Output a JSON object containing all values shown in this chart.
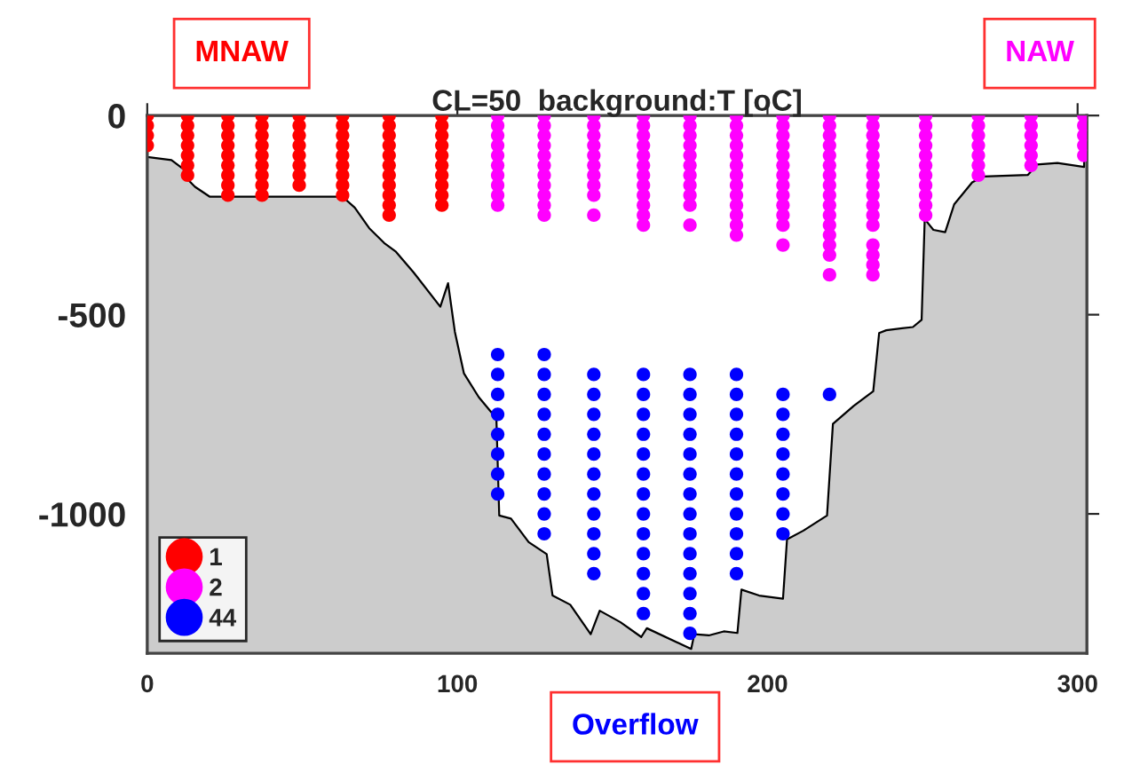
{
  "chart_data": {
    "type": "scatter",
    "title": "CL=50  background:T [oC]",
    "xlim": [
      0,
      303
    ],
    "ylim": [
      -1350,
      0
    ],
    "xticks": [
      0,
      100,
      200,
      300
    ],
    "yticks": [
      0,
      -500,
      -1000
    ],
    "legend": "bottom left",
    "annotations": [
      "MNAW",
      "NAW",
      "Overflow"
    ],
    "series": [
      {
        "type": "area",
        "color": "#ffffff",
        "marker": "none",
        "x": [
          0,
          7.8,
          11.6,
          13.5,
          15.4,
          20.2,
          63,
          66.9,
          71.6,
          76.4,
          80.2,
          85.9,
          94.5,
          97,
          99.2,
          102.1,
          106.9,
          111.6,
          112.6,
          113.5,
          117.3,
          123,
          128.8,
          130.7,
          136.4,
          143,
          145.9,
          152.6,
          159.3,
          161.1,
          175.4,
          176.4,
          181.1,
          185.9,
          190.3,
          191.6,
          197.3,
          205,
          206.3,
          211.6,
          219.2,
          221.1,
          227.8,
          234.1,
          236,
          238.3,
          246.9,
          249.7,
          250.7,
          253.5,
          257.3,
          260.2,
          266,
          269.7,
          284,
          286.9,
          293.5,
          302.1
        ],
        "values": [
          -104,
          -112,
          -134,
          -164,
          -179,
          -204,
          -204,
          -231,
          -283,
          -320,
          -342,
          -394,
          -480,
          -421,
          -543,
          -647,
          -707,
          -751,
          -766,
          -1004,
          -1012,
          -1071,
          -1101,
          -1205,
          -1228,
          -1302,
          -1243,
          -1272,
          -1309,
          -1287,
          -1339,
          -1302,
          -1305,
          -1295,
          -1299,
          -1190,
          -1205,
          -1213,
          -1064,
          -1042,
          -1004,
          -774,
          -729,
          -692,
          -546,
          -539,
          -531,
          -513,
          -260,
          -287,
          -293,
          -223,
          -168,
          -153,
          -149,
          -123,
          -119,
          -129
        ]
      },
      {
        "name": "1",
        "marker": "circle",
        "color": "#ff0000",
        "x": [
          0,
          0,
          0,
          0,
          13,
          13,
          13,
          13,
          13,
          13,
          13,
          26,
          26,
          26,
          26,
          26,
          26,
          26,
          26,
          26,
          37,
          37,
          37,
          37,
          37,
          37,
          37,
          37,
          37,
          49,
          49,
          49,
          49,
          49,
          49,
          49,
          49,
          63,
          63,
          63,
          63,
          63,
          63,
          63,
          63,
          63,
          78,
          78,
          78,
          78,
          78,
          78,
          78,
          78,
          78,
          78,
          78,
          95,
          95,
          95,
          95,
          95,
          95,
          95,
          95,
          95,
          95
        ],
        "values": [
          0,
          -25,
          -50,
          -75,
          0,
          -25,
          -50,
          -75,
          -100,
          -125,
          -150,
          0,
          -25,
          -50,
          -75,
          -100,
          -125,
          -150,
          -175,
          -200,
          0,
          -25,
          -50,
          -75,
          -100,
          -125,
          -150,
          -175,
          -200,
          0,
          -25,
          -50,
          -75,
          -100,
          -125,
          -150,
          -175,
          0,
          -25,
          -50,
          -75,
          -100,
          -125,
          -150,
          -175,
          -200,
          0,
          -25,
          -50,
          -75,
          -100,
          -125,
          -150,
          -175,
          -200,
          -225,
          -250,
          0,
          -25,
          -50,
          -75,
          -100,
          -125,
          -150,
          -175,
          -200,
          -225
        ]
      },
      {
        "name": "2",
        "marker": "circle",
        "color": "#ff00ff",
        "x": [
          113,
          113,
          113,
          113,
          113,
          113,
          113,
          113,
          113,
          113,
          128,
          128,
          128,
          128,
          128,
          128,
          128,
          128,
          128,
          128,
          128,
          144,
          144,
          144,
          144,
          144,
          144,
          144,
          144,
          144,
          144,
          160,
          160,
          160,
          160,
          160,
          160,
          160,
          160,
          160,
          160,
          160,
          160,
          175,
          175,
          175,
          175,
          175,
          175,
          175,
          175,
          175,
          175,
          175,
          190,
          190,
          190,
          190,
          190,
          190,
          190,
          190,
          190,
          190,
          190,
          190,
          190,
          205,
          205,
          205,
          205,
          205,
          205,
          205,
          205,
          205,
          205,
          205,
          205,
          205,
          220,
          220,
          220,
          220,
          220,
          220,
          220,
          220,
          220,
          220,
          220,
          220,
          220,
          220,
          220,
          220,
          234,
          234,
          234,
          234,
          234,
          234,
          234,
          234,
          234,
          234,
          234,
          234,
          234,
          234,
          234,
          234,
          251,
          251,
          251,
          251,
          251,
          251,
          251,
          251,
          251,
          251,
          251,
          268,
          268,
          268,
          268,
          268,
          268,
          268,
          285,
          285,
          285,
          285,
          285,
          285,
          302,
          302,
          302,
          302,
          302
        ],
        "values": [
          0,
          -25,
          -50,
          -75,
          -100,
          -125,
          -150,
          -175,
          -200,
          -225,
          0,
          -25,
          -50,
          -75,
          -100,
          -125,
          -150,
          -175,
          -200,
          -225,
          -250,
          0,
          -25,
          -50,
          -75,
          -100,
          -125,
          -150,
          -175,
          -200,
          -250,
          0,
          -25,
          -50,
          -75,
          -100,
          -125,
          -150,
          -175,
          -200,
          -225,
          -250,
          -275,
          0,
          -25,
          -50,
          -75,
          -100,
          -125,
          -150,
          -175,
          -200,
          -225,
          -275,
          0,
          -25,
          -50,
          -75,
          -100,
          -125,
          -150,
          -175,
          -200,
          -225,
          -250,
          -275,
          -300,
          0,
          -25,
          -50,
          -75,
          -100,
          -125,
          -150,
          -175,
          -200,
          -225,
          -250,
          -275,
          -325,
          0,
          -25,
          -50,
          -75,
          -100,
          -125,
          -150,
          -175,
          -200,
          -225,
          -250,
          -275,
          -300,
          -325,
          -350,
          -400,
          0,
          -25,
          -50,
          -75,
          -100,
          -125,
          -150,
          -175,
          -200,
          -225,
          -250,
          -275,
          -325,
          -350,
          -375,
          -400,
          0,
          -25,
          -50,
          -75,
          -100,
          -125,
          -150,
          -175,
          -200,
          -225,
          -250,
          0,
          -25,
          -50,
          -75,
          -100,
          -125,
          -150,
          0,
          -25,
          -50,
          -75,
          -100,
          -125,
          0,
          -25,
          -50,
          -75,
          -100
        ]
      },
      {
        "name": "44",
        "marker": "circle",
        "color": "#0000ff",
        "x": [
          113,
          113,
          113,
          113,
          113,
          113,
          113,
          113,
          128,
          128,
          128,
          128,
          128,
          128,
          128,
          128,
          128,
          128,
          144,
          144,
          144,
          144,
          144,
          144,
          144,
          144,
          144,
          144,
          144,
          160,
          160,
          160,
          160,
          160,
          160,
          160,
          160,
          160,
          160,
          160,
          160,
          160,
          175,
          175,
          175,
          175,
          175,
          175,
          175,
          175,
          175,
          175,
          175,
          175,
          175,
          175,
          190,
          190,
          190,
          190,
          190,
          190,
          190,
          190,
          190,
          190,
          190,
          205,
          205,
          205,
          205,
          205,
          205,
          205,
          205,
          220
        ],
        "values": [
          -600,
          -650,
          -700,
          -750,
          -800,
          -850,
          -900,
          -950,
          -600,
          -650,
          -700,
          -750,
          -800,
          -850,
          -900,
          -950,
          -1000,
          -1050,
          -650,
          -700,
          -750,
          -800,
          -850,
          -900,
          -950,
          -1000,
          -1050,
          -1100,
          -1150,
          -650,
          -700,
          -750,
          -800,
          -850,
          -900,
          -950,
          -1000,
          -1050,
          -1100,
          -1150,
          -1200,
          -1250,
          -650,
          -700,
          -750,
          -800,
          -850,
          -900,
          -950,
          -1000,
          -1050,
          -1100,
          -1150,
          -1200,
          -1250,
          -1300,
          -650,
          -700,
          -750,
          -800,
          -850,
          -900,
          -950,
          -1000,
          -1050,
          -1100,
          -1150,
          -700,
          -750,
          -800,
          -850,
          -900,
          -950,
          -1000,
          -1050,
          -700
        ]
      }
    ]
  }
}
